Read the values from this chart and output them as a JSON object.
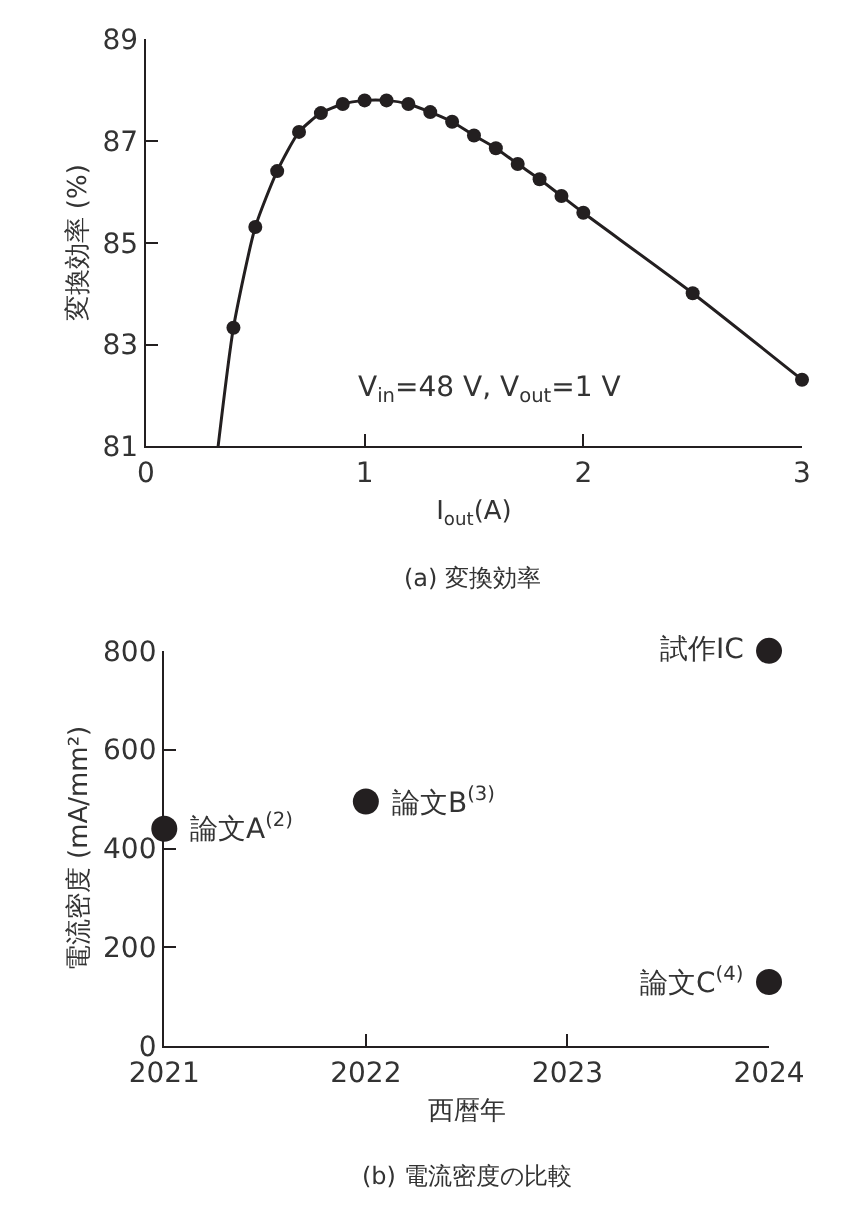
{
  "chart_data": [
    {
      "type": "line",
      "title": "(a) 変換効率",
      "xlabel": "I$_{out}$(A)",
      "ylabel": "変換効率 (%)",
      "xlim": [
        0,
        3
      ],
      "xticks": [
        0,
        1,
        2,
        3
      ],
      "ylim": [
        81,
        89
      ],
      "yticks": [
        81,
        83,
        85,
        87,
        89
      ],
      "marker": "circle",
      "series": [
        {
          "type": "line",
          "marker": "none",
          "color": "#231f20",
          "x": [
            0.33,
            0.4,
            0.5,
            0.6,
            0.7,
            0.8,
            0.9,
            1.0,
            1.1,
            1.2,
            1.3,
            1.4,
            1.5,
            1.6,
            1.7,
            1.8,
            1.9,
            2.0,
            2.5,
            3.0
          ],
          "values": [
            81,
            83.33,
            85.31,
            86.41,
            87.18,
            87.55,
            87.73,
            87.8,
            87.8,
            87.73,
            87.57,
            87.38,
            87.11,
            86.86,
            86.55,
            86.25,
            85.92,
            85.59,
            84.01,
            82.31
          ]
        },
        {
          "type": "scatter",
          "color": "#231f20",
          "x": [
            0.4,
            0.5,
            0.6,
            0.7,
            0.8,
            0.9,
            1.0,
            1.1,
            1.2,
            1.3,
            1.4,
            1.5,
            1.6,
            1.7,
            1.8,
            1.9,
            2.0,
            2.5,
            3.0
          ],
          "values": [
            83.33,
            85.31,
            86.41,
            87.18,
            87.55,
            87.73,
            87.8,
            87.8,
            87.73,
            87.57,
            87.38,
            87.11,
            86.86,
            86.55,
            86.25,
            85.92,
            85.59,
            84.01,
            82.31
          ]
        }
      ],
      "annotations": [
        "V$_{in}$=48 V, V$_{out}$=1 V"
      ]
    },
    {
      "type": "scatter",
      "title": "(b) 電流密度の比較",
      "xlabel": "西暦年",
      "ylabel": "電流密度 (mA/mm²)",
      "xlim": [
        2021,
        2024
      ],
      "xticks": [
        2021,
        2022,
        2023,
        2024
      ],
      "ylim": [
        0,
        800
      ],
      "yticks": [
        0,
        200,
        400,
        600,
        800
      ],
      "marker": "circle",
      "series": [
        {
          "color": "#231f20",
          "x": [
            2021,
            2022,
            2024,
            2024
          ],
          "values": [
            440,
            495,
            800,
            130
          ]
        }
      ],
      "annotations": [
        {
          "text": "論文A$^{(2)}$",
          "x": 2021,
          "y": 440
        },
        {
          "text": "論文B$^{(3)}$",
          "x": 2022,
          "y": 495
        },
        {
          "text": "試作IC",
          "x": 2024,
          "y": 800
        },
        {
          "text": "論文C$^{(4)}$",
          "x": 2024,
          "y": 130
        }
      ]
    }
  ]
}
